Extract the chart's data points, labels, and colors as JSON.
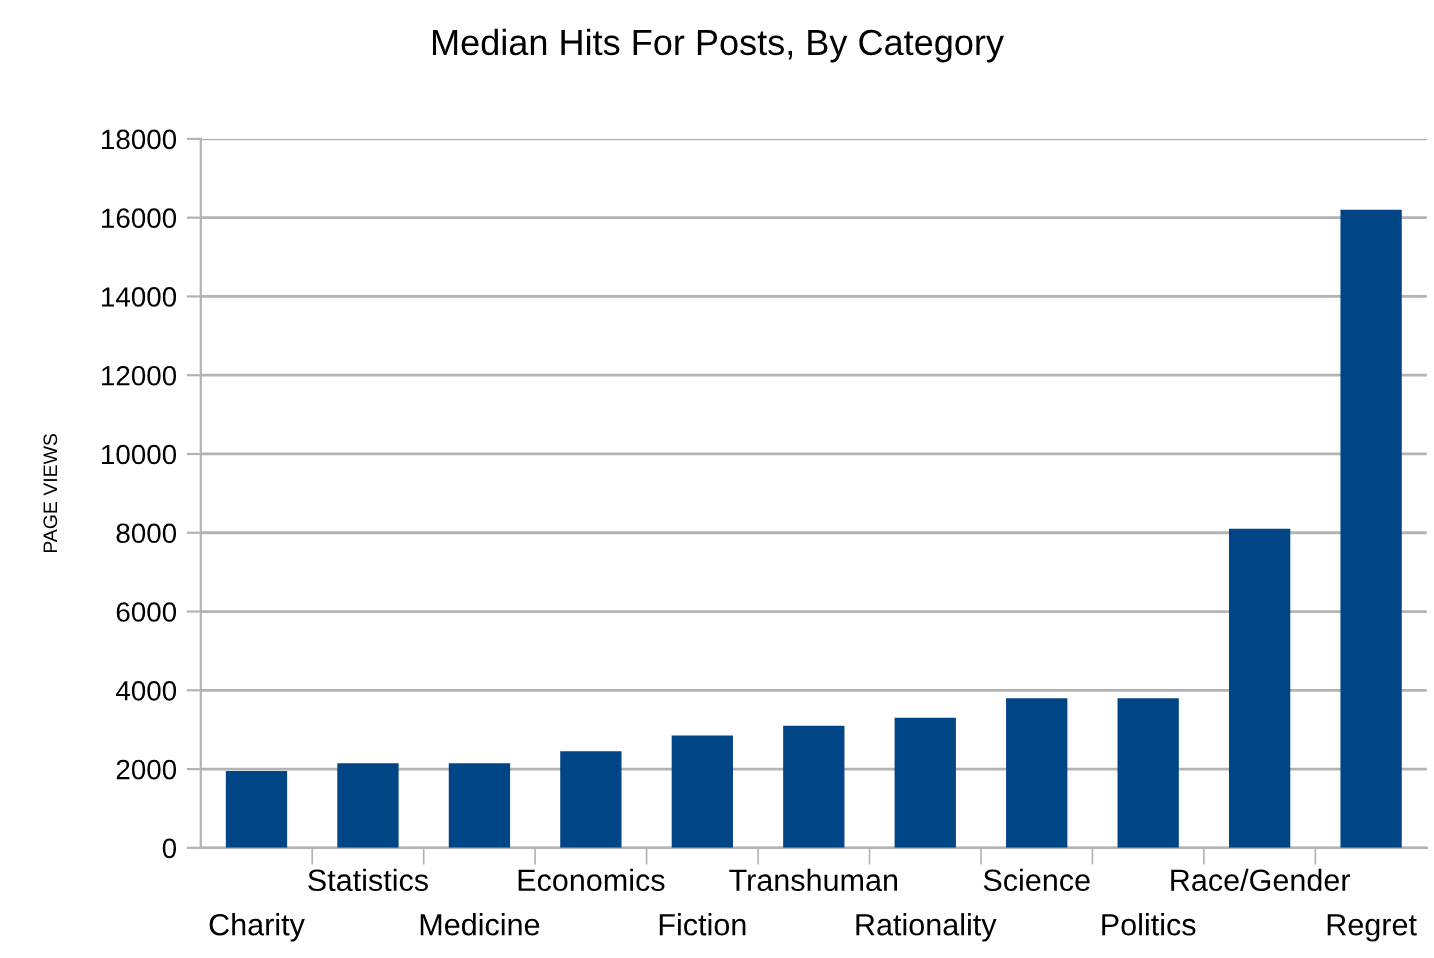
{
  "chart_data": {
    "type": "bar",
    "title": "Median Hits For Posts, By Category",
    "ylabel": "PAGE VIEWS",
    "categories": [
      "Charity",
      "Statistics",
      "Medicine",
      "Economics",
      "Fiction",
      "Transhuman",
      "Rationality",
      "Science",
      "Politics",
      "Race/Gender",
      "Regret"
    ],
    "values": [
      1950,
      2150,
      2150,
      2450,
      2850,
      3100,
      3300,
      3800,
      3800,
      8100,
      16200
    ],
    "color": "#004586",
    "ylim": [
      0,
      18000
    ],
    "yticks": [
      0,
      2000,
      4000,
      6000,
      8000,
      10000,
      12000,
      14000,
      16000,
      18000
    ],
    "grid": "y",
    "legend": false
  }
}
